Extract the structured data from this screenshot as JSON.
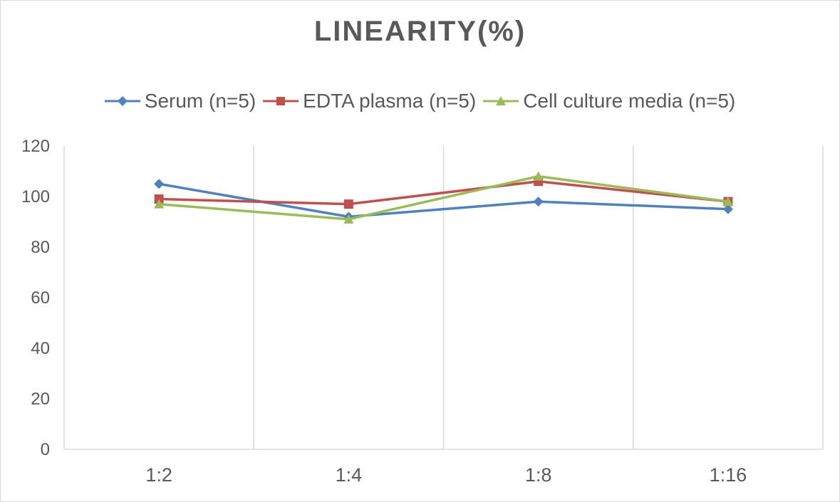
{
  "chart_data": {
    "type": "line",
    "title": "LINEARITY(%)",
    "xlabel": "",
    "ylabel": "",
    "categories": [
      "1:2",
      "1:4",
      "1:8",
      "1:16"
    ],
    "ylim": [
      0,
      120
    ],
    "yticks": [
      0,
      20,
      40,
      60,
      80,
      100,
      120
    ],
    "grid": "vertical category separators",
    "legend_position": "top",
    "series": [
      {
        "name": "Serum (n=5)",
        "values": [
          105,
          92,
          98,
          95
        ],
        "color": "#4f81bd",
        "marker": "diamond"
      },
      {
        "name": "EDTA plasma (n=5)",
        "values": [
          99,
          97,
          106,
          98
        ],
        "color": "#c0504d",
        "marker": "square"
      },
      {
        "name": "Cell culture media (n=5)",
        "values": [
          97,
          91,
          108,
          98
        ],
        "color": "#9bbb59",
        "marker": "triangle"
      }
    ]
  }
}
